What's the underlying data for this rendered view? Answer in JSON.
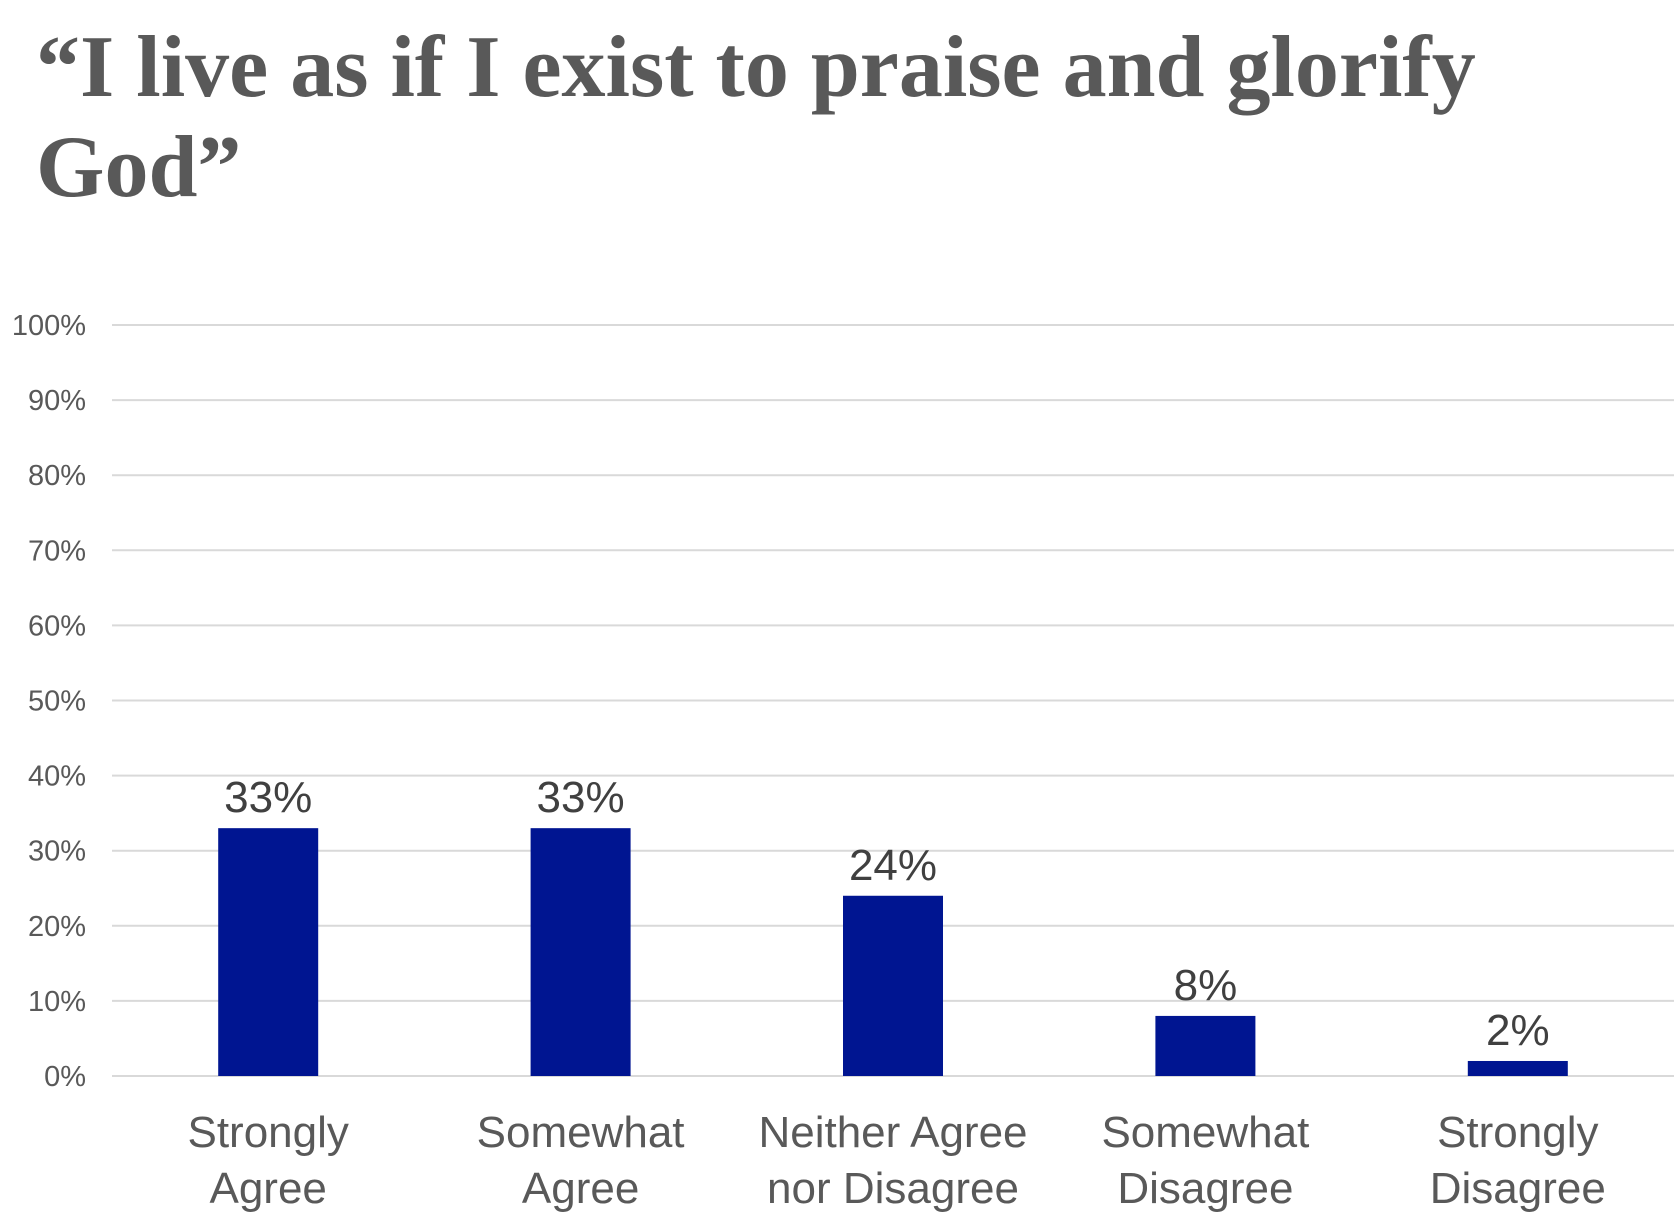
{
  "chart_data": {
    "type": "bar",
    "title": "“I live as if I exist to praise and glorify God”",
    "categories": [
      [
        "Strongly",
        "Agree"
      ],
      [
        "Somewhat",
        "Agree"
      ],
      [
        "Neither Agree",
        "nor Disagree"
      ],
      [
        "Somewhat",
        "Disagree"
      ],
      [
        "Strongly",
        "Disagree"
      ]
    ],
    "values": [
      33,
      33,
      24,
      8,
      2
    ],
    "data_labels": [
      "33%",
      "33%",
      "24%",
      "8%",
      "2%"
    ],
    "ylim": [
      0,
      100
    ],
    "yticks": [
      "0%",
      "10%",
      "20%",
      "30%",
      "40%",
      "50%",
      "60%",
      "70%",
      "80%",
      "90%",
      "100%"
    ],
    "xlabel": "",
    "ylabel": "",
    "grid": true,
    "legend": "none",
    "colors": {
      "bar": "#001591",
      "grid": "#d9d9d9",
      "title": "#595959",
      "text": "#595959",
      "data_label": "#404040"
    }
  }
}
